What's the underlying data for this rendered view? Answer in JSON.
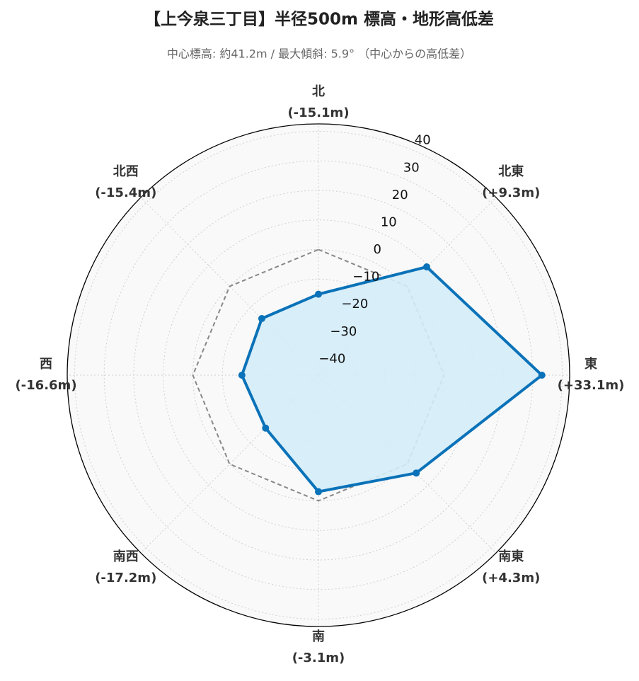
{
  "chart_data": {
    "type": "radar",
    "title": "【上今泉三丁目】半径500m 標高・地形高低差",
    "subtitle": "中心標高: 約41.2m / 最大傾斜: 5.9° （中心からの高低差）",
    "categories": [
      "北",
      "北東",
      "東",
      "南東",
      "南",
      "南西",
      "西",
      "北西"
    ],
    "values": [
      -15.1,
      9.3,
      33.1,
      4.3,
      -3.1,
      -17.2,
      -16.6,
      -15.4
    ],
    "value_labels": [
      "(-15.1m)",
      "(+9.3m)",
      "(+33.1m)",
      "(+4.3m)",
      "(-3.1m)",
      "(-17.2m)",
      "(-16.6m)",
      "(-15.4m)"
    ],
    "color": "#0a72b8",
    "fill_color": "#d4ecf8",
    "reference_value": 0,
    "ylim": [
      -42.5,
      42.5
    ],
    "yticks": [
      {
        "value": -40,
        "label": "−40"
      },
      {
        "value": -30,
        "label": "−30"
      },
      {
        "value": -20,
        "label": "−20"
      },
      {
        "value": -10,
        "label": "−10"
      },
      0,
      10,
      20,
      30,
      40
    ],
    "grid": true
  }
}
